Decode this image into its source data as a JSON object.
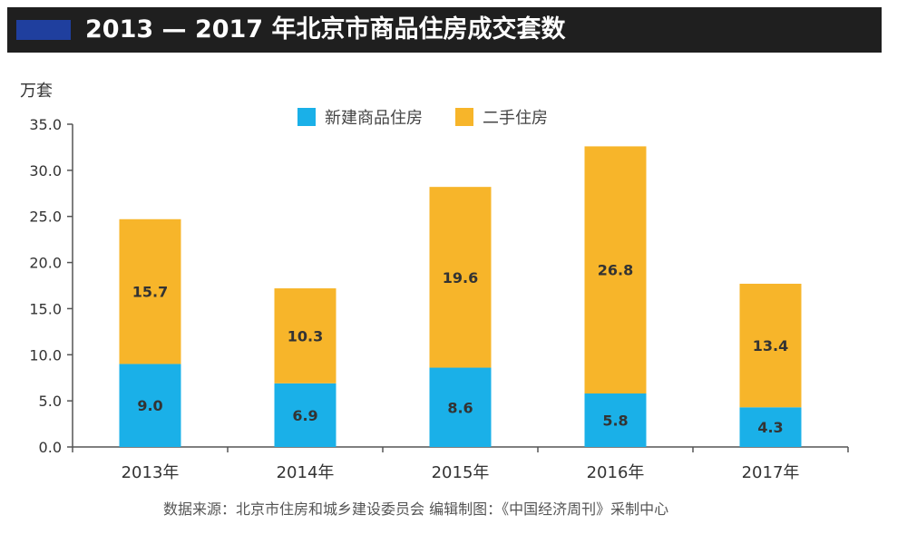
{
  "title": "2013 — 2017 年北京市商品住房成交套数",
  "unit": "万套",
  "source": "数据来源：北京市住房和城乡建设委员会 编辑制图：《中国经济周刊》采制中心",
  "colors": {
    "new": "#1ab0e8",
    "second": "#f7b52a",
    "title_bg": "#1f1f1f",
    "accent": "#1f3f9e"
  },
  "chart_data": {
    "type": "bar",
    "stacked": true,
    "categories": [
      "2013年",
      "2014年",
      "2015年",
      "2016年",
      "2017年"
    ],
    "series": [
      {
        "name": "新建商品住房",
        "values": [
          9.0,
          6.9,
          8.6,
          5.8,
          4.3
        ]
      },
      {
        "name": "二手住房",
        "values": [
          15.7,
          10.3,
          19.6,
          26.8,
          13.4
        ]
      }
    ],
    "ylim": [
      0,
      35
    ],
    "yticks": [
      "0.0",
      "5.0",
      "10.0",
      "15.0",
      "20.0",
      "25.0",
      "30.0",
      "35.0"
    ],
    "legend": "top-center",
    "grid": false
  }
}
